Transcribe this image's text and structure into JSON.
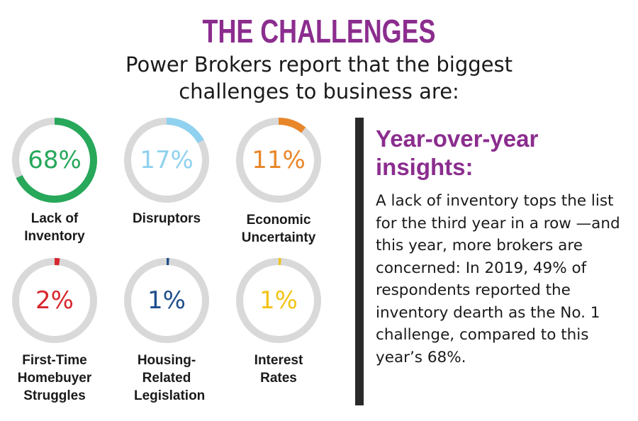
{
  "title": "THE CHALLENGES",
  "subtitle": "Power Brokers report that the biggest challenges to business are:",
  "chart_data": {
    "type": "pie",
    "categories": [
      "Lack of Inventory",
      "Disruptors",
      "Economic Uncertainty",
      "First-Time Homebuyer Struggles",
      "Housing-Related Legislation",
      "Interest Rates"
    ],
    "values": [
      68,
      17,
      11,
      2,
      1,
      1
    ],
    "value_labels": [
      "68%",
      "17%",
      "11%",
      "2%",
      "1%",
      "1%"
    ],
    "colors": [
      "#27a85a",
      "#8fd1ee",
      "#e8862a",
      "#d7262e",
      "#1f4e8c",
      "#f2c416"
    ],
    "track_color": "#d9d9d9"
  },
  "insights": {
    "heading": "Year-over-year insights:",
    "text": "A lack of inventory tops the list for the third year in a row —and this year, more brokers are concerned: In 2019, 49% of respondents reported the inventory dearth as the No. 1 challenge, compared to this year’s 68%."
  }
}
